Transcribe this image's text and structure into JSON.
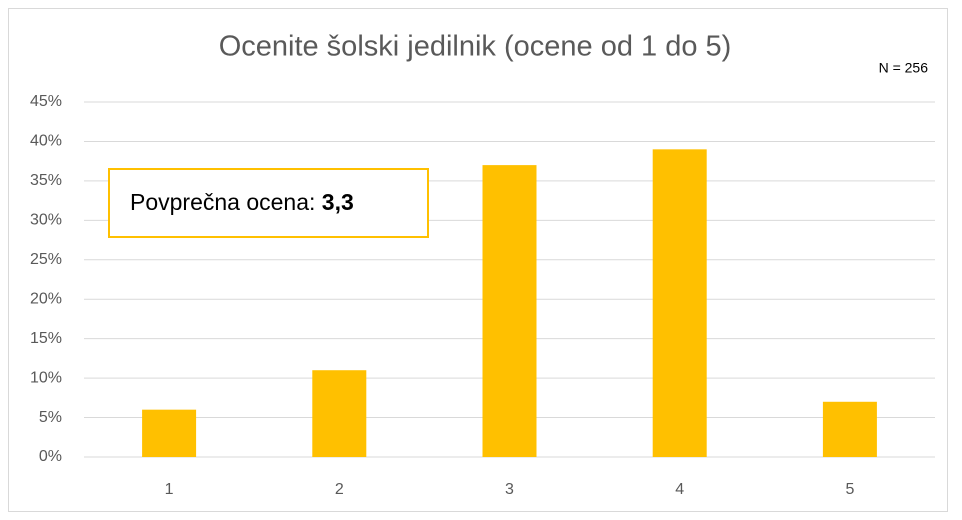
{
  "chart_data": {
    "type": "bar",
    "title": "Ocenite šolski jedilnik (ocene od 1 do 5)",
    "sample_note": "N = 256",
    "annotation_label": "Povprečna ocena:",
    "annotation_value": "3,3",
    "categories": [
      "1",
      "2",
      "3",
      "4",
      "5"
    ],
    "values": [
      6,
      11,
      37,
      39,
      7
    ],
    "color": "#ffc000",
    "ylim": [
      0,
      45
    ],
    "yticks": [
      {
        "value": 0,
        "label": "0%"
      },
      {
        "value": 5,
        "label": "5%"
      },
      {
        "value": 10,
        "label": "10%"
      },
      {
        "value": 15,
        "label": "15%"
      },
      {
        "value": 20,
        "label": "20%"
      },
      {
        "value": 25,
        "label": "25%"
      },
      {
        "value": 30,
        "label": "30%"
      },
      {
        "value": 35,
        "label": "35%"
      },
      {
        "value": 40,
        "label": "40%"
      },
      {
        "value": 45,
        "label": "45%"
      }
    ],
    "grid": true
  }
}
